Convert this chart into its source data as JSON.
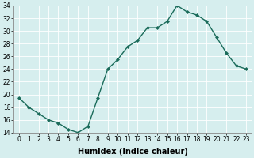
{
  "xlabel": "Humidex (Indice chaleur)",
  "ylabel": "",
  "x": [
    0,
    1,
    2,
    3,
    4,
    5,
    6,
    7,
    8,
    9,
    10,
    11,
    12,
    13,
    14,
    15,
    16,
    17,
    18,
    19,
    20,
    21,
    22,
    23
  ],
  "y": [
    19.5,
    18.0,
    17.0,
    16.0,
    15.5,
    14.5,
    14.0,
    15.0,
    19.5,
    24.0,
    25.5,
    27.5,
    28.5,
    30.5,
    30.5,
    31.5,
    34.0,
    33.0,
    32.5,
    31.5,
    29.0,
    26.5,
    24.5,
    24.0
  ],
  "line_color": "#1a6b5a",
  "marker": "D",
  "marker_size": 2.0,
  "bg_color": "#d6eeee",
  "grid_color": "#ffffff",
  "ylim": [
    14,
    34
  ],
  "xlim_min": -0.5,
  "xlim_max": 23.5,
  "yticks": [
    14,
    16,
    18,
    20,
    22,
    24,
    26,
    28,
    30,
    32,
    34
  ],
  "xticks": [
    0,
    1,
    2,
    3,
    4,
    5,
    6,
    7,
    8,
    9,
    10,
    11,
    12,
    13,
    14,
    15,
    16,
    17,
    18,
    19,
    20,
    21,
    22,
    23
  ],
  "tick_fontsize": 5.5,
  "xlabel_fontsize": 7.0,
  "line_width": 1.0
}
